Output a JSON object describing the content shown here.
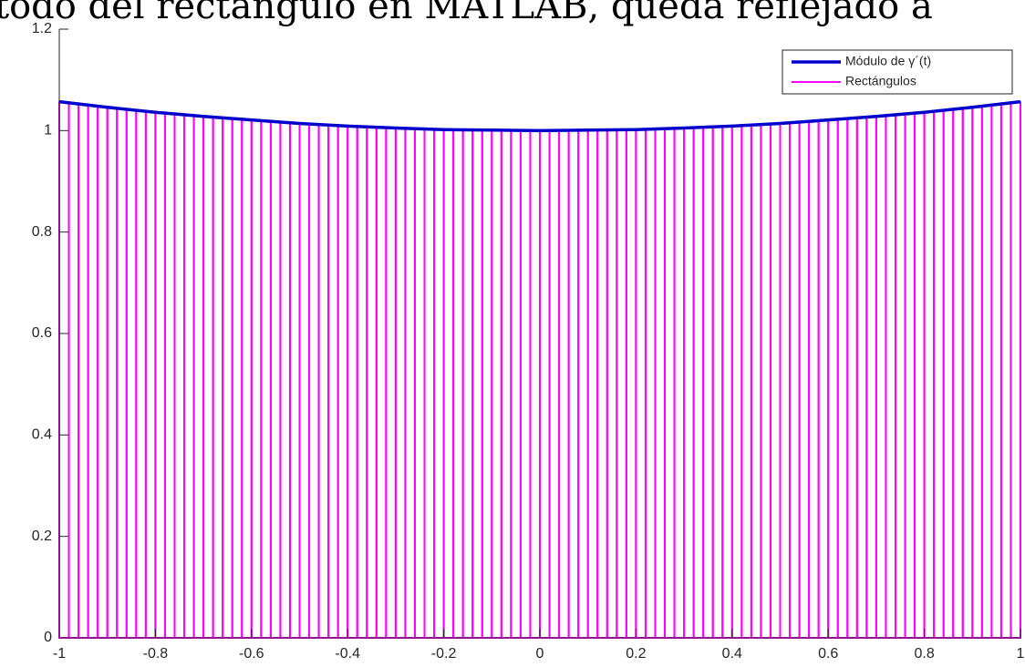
{
  "chart_data": {
    "type": "line",
    "title": "todo del rectángulo en MATLAB, queda reflejado a",
    "xlim": [
      -1,
      1
    ],
    "xticks": [
      -1,
      -0.8,
      -0.6,
      -0.4,
      -0.2,
      0,
      0.2,
      0.4,
      0.6,
      0.8,
      1
    ],
    "ylim": [
      0,
      1.2
    ],
    "yticks": [
      0,
      0.2,
      0.4,
      0.6,
      0.8,
      1,
      1.2
    ],
    "legend": "top-right",
    "series": [
      {
        "name": "Módulo de γ´(t)",
        "color": "#0000cc",
        "x": [
          -1,
          -0.9,
          -0.8,
          -0.7,
          -0.6,
          -0.5,
          -0.4,
          -0.3,
          -0.2,
          -0.1,
          0,
          0.1,
          0.2,
          0.3,
          0.4,
          0.5,
          0.6,
          0.7,
          0.8,
          0.9,
          1
        ],
        "values": [
          1.057,
          1.046,
          1.036,
          1.028,
          1.021,
          1.014,
          1.009,
          1.005,
          1.002,
          1.001,
          1.0,
          1.001,
          1.002,
          1.005,
          1.009,
          1.014,
          1.021,
          1.028,
          1.036,
          1.046,
          1.057
        ]
      },
      {
        "name": "Rectángulos",
        "color": "#ff00ff",
        "bins": [
          -1,
          -0.98,
          -0.96,
          -0.94,
          -0.92,
          -0.9,
          -0.88,
          -0.86,
          -0.84,
          -0.82,
          -0.8,
          -0.78,
          -0.76,
          -0.74,
          -0.72,
          -0.7,
          -0.68,
          -0.66,
          -0.64,
          -0.62,
          -0.6,
          -0.58,
          -0.56,
          -0.54,
          -0.52,
          -0.5,
          -0.48,
          -0.46,
          -0.44,
          -0.42,
          -0.4,
          -0.38,
          -0.36,
          -0.34,
          -0.32,
          -0.3,
          -0.28,
          -0.26,
          -0.24,
          -0.22,
          -0.2,
          -0.18,
          -0.16,
          -0.14,
          -0.12,
          -0.1,
          -0.08,
          -0.06,
          -0.04,
          -0.02,
          0,
          0.02,
          0.04,
          0.06,
          0.08,
          0.1,
          0.12,
          0.14,
          0.16,
          0.18,
          0.2,
          0.22,
          0.24,
          0.26,
          0.28,
          0.3,
          0.32,
          0.34,
          0.36,
          0.38,
          0.4,
          0.42,
          0.44,
          0.46,
          0.48,
          0.5,
          0.52,
          0.54,
          0.56,
          0.58,
          0.6,
          0.62,
          0.64,
          0.66,
          0.68,
          0.7,
          0.72,
          0.74,
          0.76,
          0.78,
          0.8,
          0.82,
          0.84,
          0.86,
          0.88,
          0.9,
          0.92,
          0.94,
          0.96,
          0.98,
          1
        ],
        "values": [
          1.056,
          1.054,
          1.051,
          1.049,
          1.047,
          1.045,
          1.043,
          1.041,
          1.039,
          1.037,
          1.036,
          1.034,
          1.032,
          1.03,
          1.029,
          1.027,
          1.026,
          1.024,
          1.023,
          1.021,
          1.02,
          1.019,
          1.017,
          1.016,
          1.015,
          1.014,
          1.013,
          1.012,
          1.011,
          1.01,
          1.009,
          1.008,
          1.007,
          1.006,
          1.005,
          1.005,
          1.004,
          1.004,
          1.003,
          1.003,
          1.002,
          1.002,
          1.001,
          1.001,
          1.001,
          1.0,
          1.0,
          1.0,
          1.0,
          1.0,
          1.0,
          1.0,
          1.0,
          1.0,
          1.0,
          1.001,
          1.001,
          1.001,
          1.002,
          1.002,
          1.003,
          1.003,
          1.004,
          1.004,
          1.005,
          1.005,
          1.006,
          1.007,
          1.008,
          1.009,
          1.01,
          1.011,
          1.012,
          1.013,
          1.014,
          1.015,
          1.016,
          1.017,
          1.019,
          1.02,
          1.021,
          1.023,
          1.024,
          1.026,
          1.027,
          1.029,
          1.03,
          1.032,
          1.034,
          1.036,
          1.037,
          1.039,
          1.041,
          1.043,
          1.045,
          1.047,
          1.049,
          1.051,
          1.054,
          1.056
        ]
      }
    ]
  }
}
